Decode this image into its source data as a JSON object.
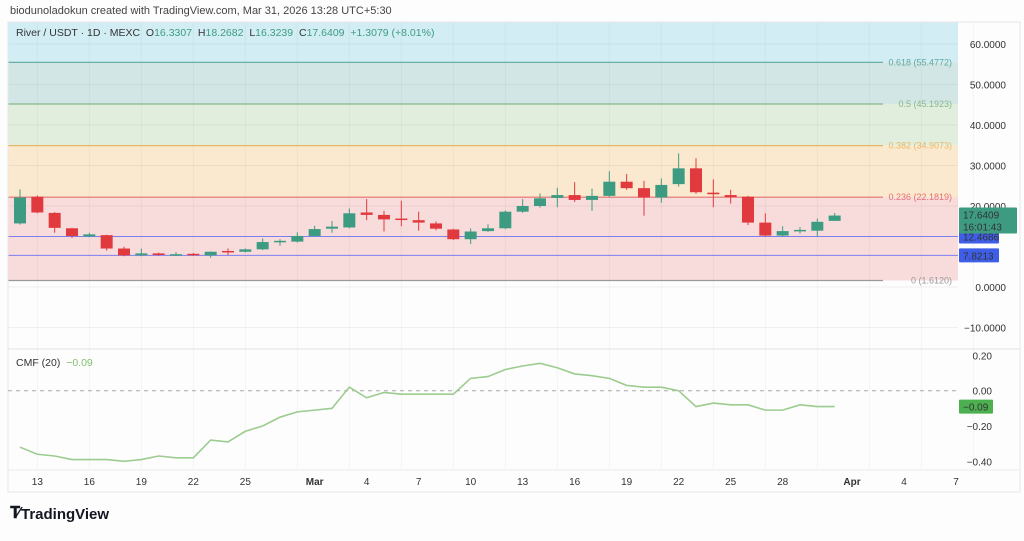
{
  "header": {
    "attribution": "biodunoladokun created with TradingView.com, Mar 31, 2026 13:28 UTC+5:30"
  },
  "legend": {
    "symbol": "River / USDT · 1D · MEXC",
    "o_label": "O",
    "o": "16.3307",
    "h_label": "H",
    "h": "18.2682",
    "l_label": "L",
    "l": "16.3239",
    "c_label": "C",
    "c": "17.6409",
    "change": "+1.3079 (+8.01%)"
  },
  "cmf_legend": {
    "name": "CMF (20)",
    "value": "−0.09"
  },
  "logo": {
    "text": "TradingView"
  },
  "colors": {
    "up": "#3d9b82",
    "down": "#e0393e",
    "cmf": "#9ccc8f",
    "blue": "#3f5ee8"
  },
  "chart_data": [
    {
      "type": "candlestick",
      "title": "River / USDT · 1D · MEXC",
      "ylim": [
        -12,
        62
      ],
      "yticks": [
        "60.0000",
        "50.0000",
        "40.0000",
        "30.0000",
        "20.0000",
        "0.0000",
        "−10.0000"
      ],
      "ytick_values": [
        60,
        50,
        40,
        30,
        20,
        0,
        -10
      ],
      "xticks": [
        {
          "i": 1,
          "label": "13"
        },
        {
          "i": 4,
          "label": "16"
        },
        {
          "i": 7,
          "label": "19"
        },
        {
          "i": 10,
          "label": "22"
        },
        {
          "i": 13,
          "label": "25"
        },
        {
          "i": 17,
          "label": "Mar"
        },
        {
          "i": 20,
          "label": "4"
        },
        {
          "i": 23,
          "label": "7"
        },
        {
          "i": 26,
          "label": "10"
        },
        {
          "i": 29,
          "label": "13"
        },
        {
          "i": 32,
          "label": "16"
        },
        {
          "i": 35,
          "label": "19"
        },
        {
          "i": 38,
          "label": "22"
        },
        {
          "i": 41,
          "label": "25"
        },
        {
          "i": 44,
          "label": "28"
        },
        {
          "i": 48,
          "label": "Apr"
        },
        {
          "i": 51,
          "label": "4"
        },
        {
          "i": 54,
          "label": "7"
        }
      ],
      "fib_levels": [
        {
          "ratio": "0.618",
          "price": 55.4772,
          "label": "0.618 (55.4772)",
          "color": "#5fa8a0",
          "band": "#d3e6e6"
        },
        {
          "ratio": "0.5",
          "price": 45.1923,
          "label": "0.5 (45.1923)",
          "color": "#86b88a",
          "band": "#e2eedd"
        },
        {
          "ratio": "0.382",
          "price": 34.9073,
          "label": "0.382 (34.9073)",
          "color": "#e8b765",
          "band": "#fbe9cf"
        },
        {
          "ratio": "0.236",
          "price": 22.1819,
          "label": "0.236 (22.1819)",
          "color": "#e4706f",
          "band": "#f8dcdc"
        },
        {
          "ratio": "0",
          "price": 1.612,
          "label": "0 (1.6120)",
          "color": "#999999",
          "band": "#f8dcdc"
        }
      ],
      "top_band": "#d2eef4",
      "hlines": [
        {
          "price": 12.4686,
          "label": "12.4686"
        },
        {
          "price": 7.8213,
          "label": "7.8213"
        }
      ],
      "last_price": {
        "price": 17.6409,
        "label": "17.6409",
        "countdown": "16:01:43"
      },
      "candles": [
        [
          "Feb 12",
          15.7,
          24.1,
          15.4,
          22.1
        ],
        [
          "Feb 13",
          22.3,
          22.6,
          18.2,
          18.4
        ],
        [
          "Feb 14",
          18.3,
          18.5,
          13.4,
          14.6
        ],
        [
          "Feb 15",
          14.5,
          14.6,
          12.1,
          12.6
        ],
        [
          "Feb 16",
          12.5,
          13.4,
          12.3,
          13.0
        ],
        [
          "Feb 17",
          12.8,
          12.9,
          9.0,
          9.5
        ],
        [
          "Feb 18",
          9.5,
          9.95,
          7.6,
          7.8
        ],
        [
          "Feb 19",
          7.8,
          9.5,
          7.6,
          8.3
        ],
        [
          "Feb 20",
          8.3,
          8.5,
          7.7,
          7.9
        ],
        [
          "Feb 21",
          7.9,
          8.6,
          7.7,
          8.1
        ],
        [
          "Feb 22",
          8.2,
          8.4,
          7.7,
          7.9
        ],
        [
          "Feb 23",
          7.8,
          8.8,
          7.2,
          8.7
        ],
        [
          "Feb 24",
          8.9,
          9.5,
          7.9,
          8.7
        ],
        [
          "Feb 25",
          8.7,
          9.5,
          8.5,
          9.3
        ],
        [
          "Feb 26",
          9.3,
          12.0,
          9.1,
          11.1
        ],
        [
          "Feb 27",
          11.3,
          11.8,
          10.2,
          11.4
        ],
        [
          "Feb 28",
          11.2,
          13.5,
          11.0,
          12.6
        ],
        [
          "Mar 1",
          12.6,
          15.1,
          12.4,
          14.3
        ],
        [
          "Mar 2",
          14.4,
          16.3,
          13.4,
          14.9
        ],
        [
          "Mar 3",
          14.7,
          19.4,
          14.5,
          18.2
        ],
        [
          "Mar 4",
          18.4,
          21.7,
          16.5,
          17.8
        ],
        [
          "Mar 5",
          17.8,
          18.8,
          13.7,
          16.7
        ],
        [
          "Mar 6",
          16.9,
          21.3,
          15.0,
          16.6
        ],
        [
          "Mar 7",
          16.5,
          18.6,
          13.9,
          15.9
        ],
        [
          "Mar 8",
          15.7,
          16.2,
          14.0,
          14.4
        ],
        [
          "Mar 9",
          14.2,
          14.4,
          11.6,
          11.8
        ],
        [
          "Mar 10",
          11.8,
          14.5,
          10.6,
          13.7
        ],
        [
          "Mar 11",
          13.8,
          15.5,
          13.6,
          14.5
        ],
        [
          "Mar 12",
          14.5,
          18.9,
          14.3,
          18.6
        ],
        [
          "Mar 13",
          18.6,
          21.7,
          18.3,
          20.0
        ],
        [
          "Mar 14",
          20.0,
          23.1,
          19.6,
          21.9
        ],
        [
          "Mar 15",
          22.0,
          24.5,
          19.7,
          22.7
        ],
        [
          "Mar 16",
          22.7,
          25.9,
          21.0,
          21.5
        ],
        [
          "Mar 17",
          21.5,
          24.3,
          18.8,
          22.5
        ],
        [
          "Mar 18",
          22.5,
          28.6,
          22.2,
          26.0
        ],
        [
          "Mar 19",
          26.0,
          27.9,
          24.0,
          24.4
        ],
        [
          "Mar 20",
          24.4,
          26.2,
          17.6,
          22.1
        ],
        [
          "Mar 21",
          22.1,
          26.8,
          20.8,
          25.2
        ],
        [
          "Mar 22",
          25.4,
          33.0,
          24.8,
          29.3
        ],
        [
          "Mar 23",
          29.3,
          31.8,
          23.0,
          23.4
        ],
        [
          "Mar 24",
          23.3,
          26.6,
          19.7,
          22.9
        ],
        [
          "Mar 25",
          22.7,
          24.0,
          20.6,
          22.2
        ],
        [
          "Mar 26",
          22.3,
          22.5,
          15.3,
          15.9
        ],
        [
          "Mar 27",
          15.9,
          18.2,
          12.5,
          12.7
        ],
        [
          "Mar 28",
          12.7,
          15.0,
          12.4,
          13.8
        ],
        [
          "Mar 29",
          13.9,
          14.8,
          13.2,
          14.1
        ],
        [
          "Mar 30",
          13.9,
          16.9,
          12.5,
          16.1
        ],
        [
          "Mar 31",
          16.3307,
          18.2682,
          16.3239,
          17.6409
        ]
      ]
    },
    {
      "type": "line",
      "title": "CMF (20)",
      "ylim": [
        -0.45,
        0.22
      ],
      "yticks": [
        "0.20",
        "0.00",
        "−0.20",
        "−0.40"
      ],
      "ytick_values": [
        0.2,
        0,
        -0.2,
        -0.4
      ],
      "last_label": "−0.09",
      "values": [
        -0.32,
        -0.36,
        -0.37,
        -0.39,
        -0.39,
        -0.39,
        -0.4,
        -0.39,
        -0.37,
        -0.38,
        -0.38,
        -0.28,
        -0.29,
        -0.23,
        -0.2,
        -0.15,
        -0.12,
        -0.11,
        -0.1,
        0.02,
        -0.04,
        -0.01,
        -0.02,
        -0.02,
        -0.02,
        -0.02,
        0.07,
        0.08,
        0.12,
        0.14,
        0.155,
        0.13,
        0.095,
        0.085,
        0.07,
        0.03,
        0.02,
        0.02,
        0.0,
        -0.09,
        -0.07,
        -0.08,
        -0.08,
        -0.11,
        -0.11,
        -0.08,
        -0.09,
        -0.09
      ]
    }
  ]
}
